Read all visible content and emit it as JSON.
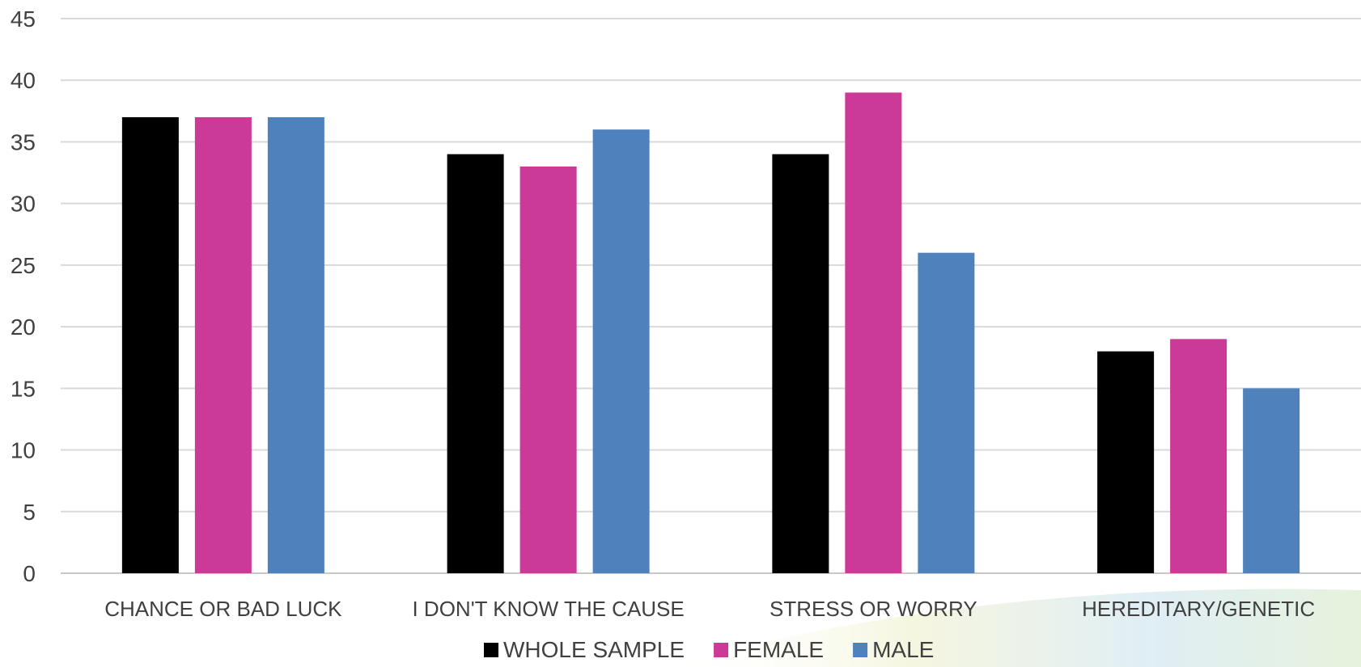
{
  "chart_data": {
    "type": "bar",
    "categories": [
      "CHANCE OR BAD LUCK",
      "I DON'T KNOW THE CAUSE",
      "STRESS OR WORRY",
      "HEREDITARY/GENETIC"
    ],
    "series": [
      {
        "name": "WHOLE SAMPLE",
        "values": [
          37,
          34,
          34,
          18
        ],
        "color": "#000000"
      },
      {
        "name": "FEMALE",
        "values": [
          37,
          33,
          39,
          19
        ],
        "color": "#CC3A97"
      },
      {
        "name": "MALE",
        "values": [
          37,
          36,
          26,
          15
        ],
        "color": "#4F81BD"
      }
    ],
    "ylim": [
      0,
      45
    ],
    "yticks": [
      0,
      5,
      10,
      15,
      20,
      25,
      30,
      35,
      40,
      45
    ],
    "grid": true,
    "legend_position": "bottom"
  }
}
